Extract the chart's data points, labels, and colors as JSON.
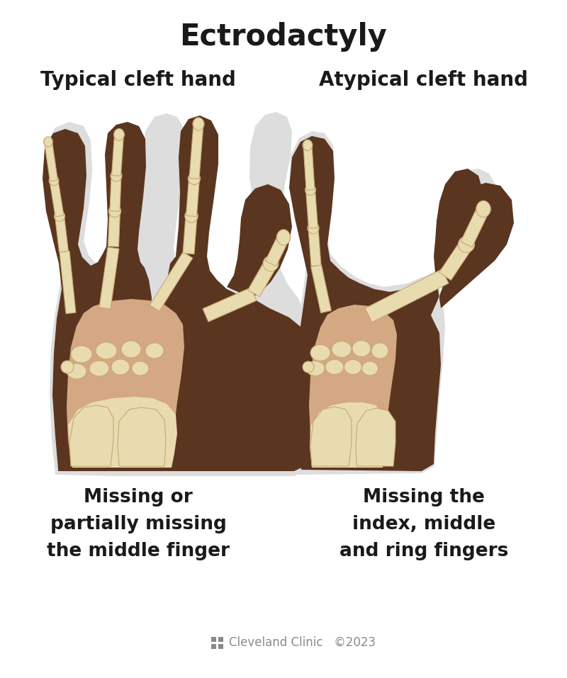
{
  "title": "Ectrodactyly",
  "title_fontsize": 30,
  "title_fontweight": "bold",
  "title_color": "#1a1a1a",
  "subtitle_left": "Typical cleft hand",
  "subtitle_right": "Atypical cleft hand",
  "subtitle_fontsize": 20,
  "subtitle_fontweight": "bold",
  "desc_left": "Missing or\npartially missing\nthe middle finger",
  "desc_right": "Missing the\nindex, middle\nand ring fingers",
  "desc_fontsize": 19,
  "background_color": "#ffffff",
  "skin_dark": "#5a3520",
  "skin_mid": "#6b4028",
  "bone_fill": "#e8dbb0",
  "bone_edge": "#c8a870",
  "wrist_light": "#d4a882",
  "footer_color": "#8a8a8a"
}
